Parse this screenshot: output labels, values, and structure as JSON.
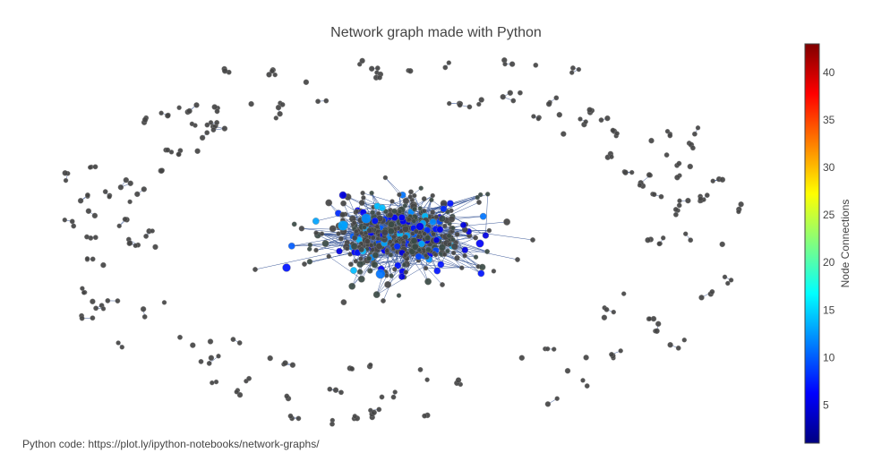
{
  "chart_data": {
    "type": "scatter",
    "title": "Network graph made with Python",
    "annotation": "Python code:  https://plot.ly/ipython-notebooks/network-graphs/",
    "xaxis": {
      "showgrid": false,
      "showticklabels": false,
      "zeroline": false
    },
    "yaxis": {
      "showgrid": false,
      "showticklabels": false,
      "zeroline": false
    },
    "colorbar": {
      "title": "Node Connections",
      "colorscale": "Jet",
      "range": [
        1,
        43
      ],
      "ticks": [
        5,
        10,
        15,
        20,
        25,
        30,
        35,
        40
      ],
      "colors": [
        "#000080",
        "#0000ff",
        "#0080ff",
        "#00ffff",
        "#80ff80",
        "#ffff00",
        "#ff8000",
        "#ff0000",
        "#800000"
      ]
    },
    "node_color_default": "#444444",
    "edge_color": "#3d5a99"
  }
}
